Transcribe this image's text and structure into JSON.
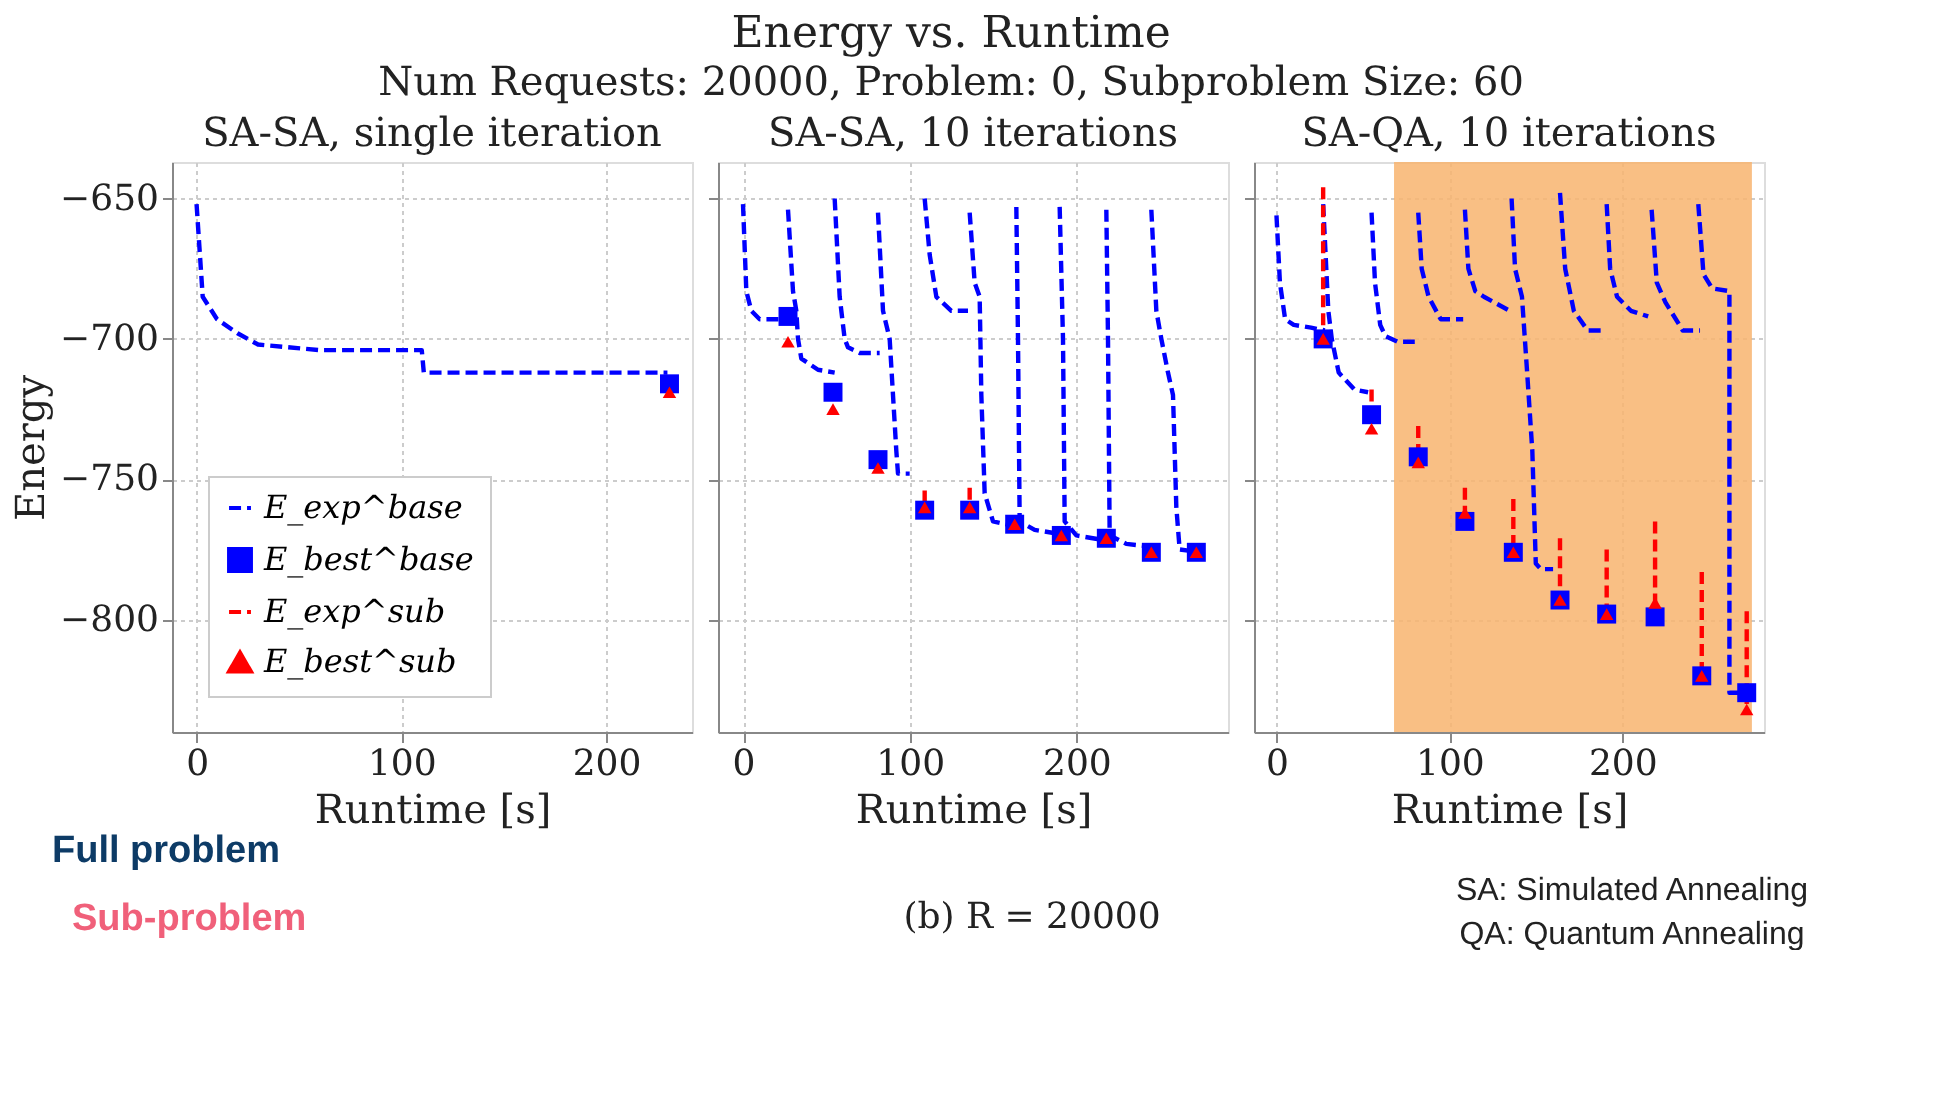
{
  "chart_data": [
    {
      "type": "other",
      "title": "Energy vs. Runtime",
      "subtitle": "Num Requests: 20000, Problem: 0, Subproblem Size: 60",
      "annotations": [
        "Full problem",
        "Sub-problem",
        "(b) R = 20000",
        "SA: Simulated Annealing",
        "QA: Quantum Annealing"
      ]
    },
    {
      "type": "line",
      "title": "SA-SA, single iteration",
      "xlabel": "Runtime [s]",
      "ylabel": "Energy",
      "xlim": [
        -12,
        242
      ],
      "ylim": [
        -840,
        -637
      ],
      "xticks": [
        0,
        100,
        200
      ],
      "yticks": [
        -650,
        -700,
        -750,
        -800
      ],
      "grid": true,
      "legend": "bottom left",
      "series": [
        {
          "name": "E_exp^base",
          "type": "line",
          "line_style": "dashed",
          "marker": "none",
          "color": "#0000ff",
          "x": [
            0,
            3,
            10,
            20,
            25,
            30,
            60,
            110,
            111,
            230
          ],
          "values": [
            -652,
            -685,
            -693,
            -698,
            -700,
            -702,
            -704,
            -704,
            -712,
            -712
          ]
        },
        {
          "name": "E_best^base",
          "type": "scatter",
          "marker": "square",
          "color": "#0000ff",
          "x": [
            231
          ],
          "values": [
            -716
          ]
        },
        {
          "name": "E_exp^sub",
          "type": "line",
          "line_style": "dashed",
          "marker": "none",
          "color": "#ff0000"
        },
        {
          "name": "E_best^sub",
          "type": "scatter",
          "marker": "triangle",
          "color": "#ff0000",
          "x": [
            231
          ],
          "values": [
            -719
          ]
        }
      ]
    },
    {
      "type": "line",
      "title": "SA-SA, 10 iterations",
      "xlabel": "Runtime [s]",
      "xlim": [
        -15,
        291
      ],
      "ylim": [
        -840,
        -637
      ],
      "xticks": [
        0,
        100,
        200
      ],
      "yticks": [
        -650,
        -700,
        -750,
        -800
      ],
      "grid": true,
      "tick_labels": "x",
      "series": [
        {
          "type": "line",
          "line_style": "dashed",
          "marker": "none",
          "color": "#0000ff",
          "x": [
            0,
            2,
            5,
            10,
            28,
            null,
            27,
            30,
            32,
            33,
            35,
            45,
            55,
            null,
            55,
            58,
            61,
            63,
            70,
            82,
            null,
            81,
            84,
            88,
            90,
            92,
            93,
            100,
            null,
            109,
            112,
            116,
            125,
            135,
            null,
            136,
            139,
            142,
            143,
            145,
            150,
            165,
            null,
            164,
            165,
            166,
            175,
            195,
            null,
            190,
            192,
            193,
            200,
            220,
            null,
            218,
            219,
            220,
            230,
            245,
            null,
            245,
            248,
            251,
            255,
            258,
            260,
            262,
            275
          ],
          "values": [
            -652,
            -683,
            -690,
            -693,
            -693,
            null,
            -654,
            -683,
            -690,
            -700,
            -707,
            -711,
            -712,
            null,
            -650,
            -685,
            -700,
            -703,
            -705,
            -705,
            null,
            -655,
            -690,
            -700,
            -720,
            -740,
            -748,
            -748,
            null,
            -650,
            -670,
            -685,
            -690,
            -690,
            null,
            -655,
            -680,
            -685,
            -720,
            -755,
            -765,
            -767,
            null,
            -653,
            -700,
            -765,
            -768,
            -770,
            null,
            -653,
            -700,
            -765,
            -770,
            -772,
            null,
            -654,
            -700,
            -770,
            -773,
            -774,
            null,
            -654,
            -690,
            -700,
            -712,
            -720,
            -760,
            -775,
            -776
          ]
        },
        {
          "type": "scatter",
          "marker": "square",
          "color": "#0000ff",
          "x": [
            27,
            54,
            81,
            109,
            136,
            163,
            191,
            218,
            245,
            272
          ],
          "values": [
            -692,
            -719,
            -743,
            -761,
            -761,
            -766,
            -770,
            -771,
            -776,
            -776
          ]
        },
        {
          "type": "line",
          "line_style": "dashed",
          "marker": "none",
          "color": "#ff0000",
          "x": [
            109,
            109,
            null,
            136,
            136
          ],
          "values": [
            -754,
            -760,
            null,
            -753,
            -760
          ]
        },
        {
          "type": "scatter",
          "marker": "triangle",
          "color": "#ff0000",
          "x": [
            27,
            54,
            81,
            109,
            136,
            163,
            191,
            218,
            245,
            272
          ],
          "values": [
            -701,
            -725,
            -746,
            -760,
            -760,
            -766,
            -770,
            -771,
            -776,
            -776
          ]
        }
      ]
    },
    {
      "type": "line",
      "title": "SA-QA, 10 iterations",
      "xlabel": "Runtime [s]",
      "xlim": [
        -13,
        282
      ],
      "ylim": [
        -840,
        -637
      ],
      "xticks": [
        0,
        100,
        200
      ],
      "yticks": [
        -650,
        -700,
        -750,
        -800
      ],
      "grid": true,
      "tick_labels": "x",
      "bands": [
        {
          "axis": "x",
          "from": 68,
          "to": 275,
          "color": "#f8b46e"
        }
      ],
      "series": [
        {
          "type": "line",
          "line_style": "dashed",
          "marker": "none",
          "color": "#0000ff",
          "x": [
            0,
            2,
            5,
            10,
            20,
            28,
            null,
            27,
            30,
            32,
            36,
            45,
            53,
            null,
            55,
            57,
            60,
            63,
            70,
            80,
            null,
            82,
            84,
            88,
            95,
            108,
            null,
            109,
            111,
            115,
            120,
            135,
            null,
            136,
            138,
            142,
            145,
            148,
            150,
            153,
            160,
            null,
            164,
            167,
            172,
            180,
            190,
            null,
            191,
            193,
            197,
            205,
            215,
            null,
            217,
            220,
            225,
            235,
            245,
            null,
            244,
            247,
            252,
            262,
            262,
            272
          ],
          "values": [
            -656,
            -680,
            -693,
            -695,
            -696,
            -697,
            null,
            -652,
            -690,
            -700,
            -712,
            -718,
            -719,
            null,
            -655,
            -680,
            -695,
            -699,
            -701,
            -701,
            null,
            -655,
            -675,
            -685,
            -693,
            -693,
            null,
            -654,
            -675,
            -683,
            -685,
            -690,
            null,
            -650,
            -675,
            -685,
            -712,
            -740,
            -780,
            -782,
            -782,
            null,
            -648,
            -675,
            -690,
            -697,
            -697,
            null,
            -652,
            -675,
            -685,
            -690,
            -692,
            null,
            -654,
            -680,
            -687,
            -697,
            -697,
            null,
            -652,
            -677,
            -682,
            -683,
            -826,
            -826
          ]
        },
        {
          "type": "scatter",
          "marker": "square",
          "color": "#0000ff",
          "x": [
            27,
            55,
            82,
            109,
            137,
            164,
            191,
            219,
            246,
            272
          ],
          "values": [
            -700,
            -727,
            -742,
            -765,
            -776,
            -793,
            -798,
            -799,
            -820,
            -826
          ]
        },
        {
          "type": "line",
          "line_style": "dashed",
          "marker": "none",
          "color": "#ff0000",
          "x": [
            27,
            27,
            null,
            55,
            55,
            null,
            82,
            82,
            null,
            109,
            109,
            null,
            137,
            137,
            null,
            164,
            164,
            null,
            191,
            191,
            null,
            219,
            219,
            null,
            246,
            246,
            null,
            272,
            272
          ],
          "values": [
            -646,
            -700,
            null,
            -718,
            -728,
            null,
            -731,
            -742,
            null,
            -753,
            -762,
            null,
            -757,
            -776,
            null,
            -771,
            -792,
            null,
            -775,
            -798,
            null,
            -765,
            -794,
            null,
            -783,
            -819,
            null,
            -797,
            -830
          ]
        },
        {
          "type": "scatter",
          "marker": "triangle",
          "color": "#ff0000",
          "x": [
            27,
            55,
            82,
            109,
            137,
            164,
            191,
            219,
            246,
            272
          ],
          "values": [
            -700,
            -732,
            -744,
            -762,
            -776,
            -793,
            -798,
            -794,
            -820,
            -832
          ]
        }
      ]
    }
  ]
}
